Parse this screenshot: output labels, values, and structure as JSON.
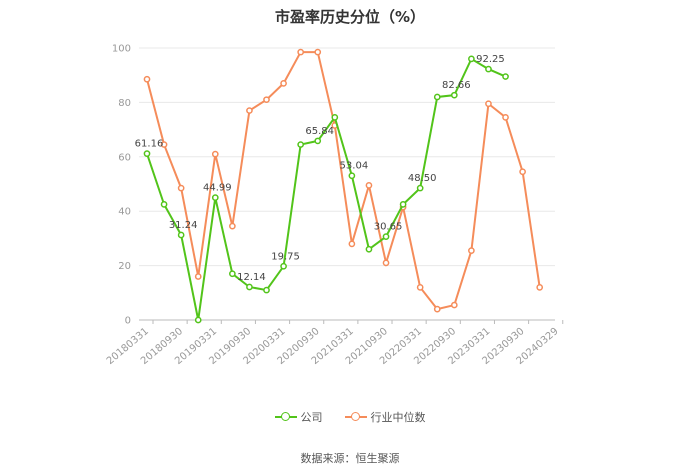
{
  "title": "市盈率历史分位（%）",
  "source": "数据来源：恒生聚源",
  "colors": {
    "company": "#52c41a",
    "industry": "#f58c5a",
    "grid": "#e8e8e8",
    "axis": "#bbbbbb"
  },
  "chart_data": {
    "type": "line",
    "title": "市盈率历史分位（%）",
    "x_tick_labels": [
      "20180331",
      "20180930",
      "20190331",
      "20190930",
      "20200331",
      "20200930",
      "20210331",
      "20210930",
      "20220331",
      "20220930",
      "20230331",
      "20230930",
      "20240329"
    ],
    "ylim": [
      0,
      100
    ],
    "y_ticks": [
      0,
      20,
      40,
      60,
      80,
      100
    ],
    "grid": true,
    "legend_position": "bottom",
    "series": [
      {
        "name": "公司",
        "values": [
          61.16,
          42.5,
          31.24,
          0,
          44.99,
          17,
          12.14,
          11,
          19.75,
          64.5,
          65.84,
          74.5,
          53.04,
          26,
          30.65,
          42.5,
          48.5,
          82,
          82.66,
          96,
          92.25,
          89.5
        ],
        "labels": {
          "0": "61.16",
          "2": "31.24",
          "4": "44.99",
          "6": "12.14",
          "8": "19.75",
          "10": "65.84",
          "12": "53.04",
          "14": "30.65",
          "16": "48.50",
          "18": "82.66",
          "20": "92.25"
        }
      },
      {
        "name": "行业中位数",
        "values": [
          88.5,
          64.5,
          48.5,
          16,
          61,
          34.5,
          77,
          81,
          87,
          98.5,
          98.5,
          71.5,
          28,
          49.5,
          21,
          41.5,
          12,
          4,
          5.5,
          25.5,
          79.5,
          74.5,
          54.5,
          12
        ]
      }
    ]
  }
}
